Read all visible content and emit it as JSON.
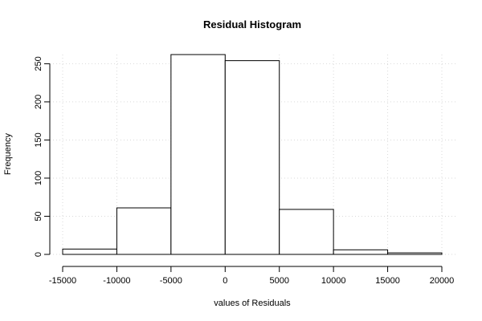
{
  "chart_data": {
    "type": "bar",
    "title": "Residual Histogram",
    "xlabel": "values of Residuals",
    "ylabel": "Frequency",
    "bins": [
      {
        "from": -15000,
        "to": -10000,
        "value": 7
      },
      {
        "from": -10000,
        "to": -5000,
        "value": 61
      },
      {
        "from": -5000,
        "to": 0,
        "value": 262
      },
      {
        "from": 0,
        "to": 5000,
        "value": 254
      },
      {
        "from": 5000,
        "to": 10000,
        "value": 59
      },
      {
        "from": 10000,
        "to": 15000,
        "value": 6
      },
      {
        "from": 15000,
        "to": 20000,
        "value": 2
      }
    ],
    "xlim": [
      -15000,
      20000
    ],
    "ylim": [
      0,
      262
    ],
    "x_ticks": [
      "-15000",
      "-10000",
      "-5000",
      "0",
      "5000",
      "10000",
      "15000",
      "20000"
    ],
    "y_ticks": [
      "0",
      "50",
      "100",
      "150",
      "200",
      "250"
    ],
    "grid": true
  }
}
